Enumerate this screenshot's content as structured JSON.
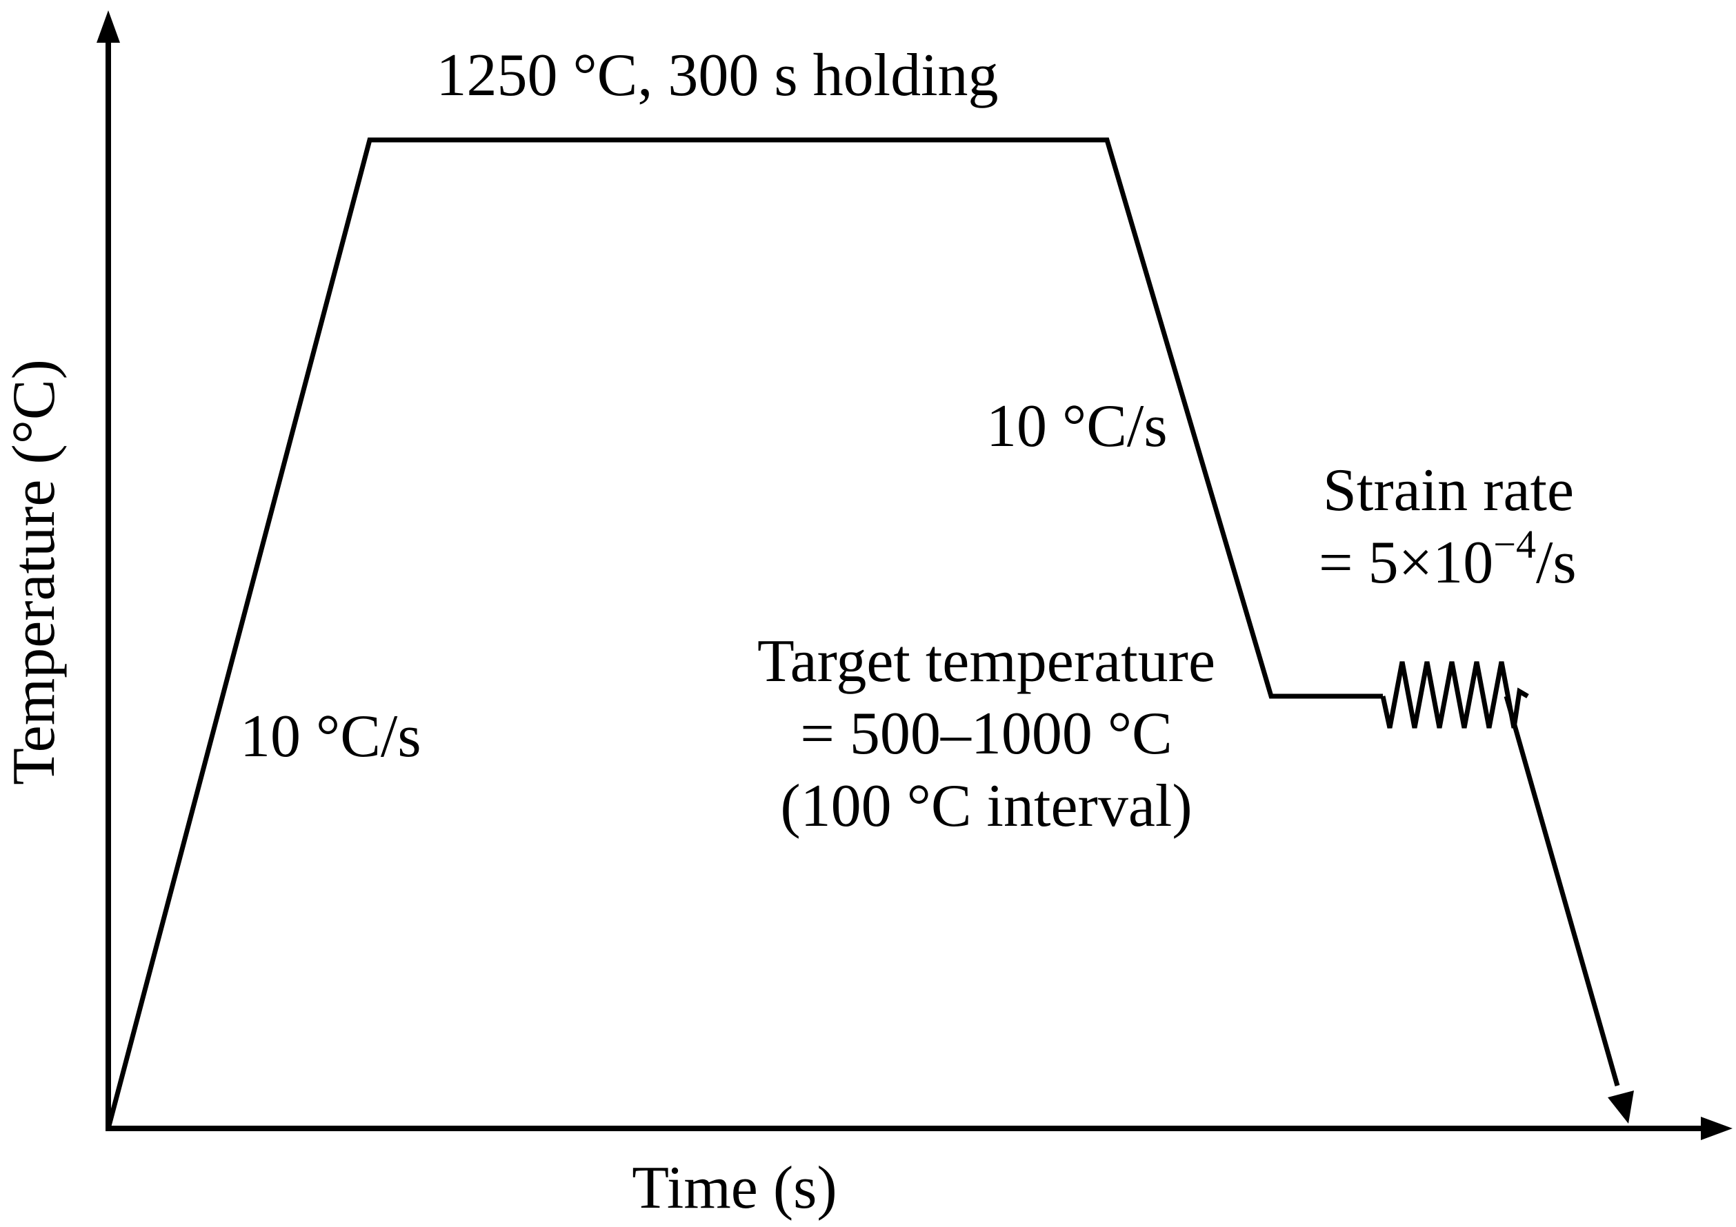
{
  "diagram": {
    "axes": {
      "y_label": "Temperature (°C)",
      "x_label": "Time (s)"
    },
    "annotations": {
      "holding": "1250 °C, 300 s holding",
      "heating_rate": "10 °C/s",
      "cooling_rate": "10 °C/s",
      "strain_rate_line1": "Strain rate",
      "strain_rate_prefix": "= 5×10",
      "strain_rate_exponent": "−4",
      "strain_rate_suffix": "/s",
      "target_line1": "Target temperature",
      "target_line2": "= 500–1000 °C",
      "target_line3": "(100 °C interval)"
    },
    "colors": {
      "line": "#000000",
      "background": "#ffffff"
    }
  }
}
